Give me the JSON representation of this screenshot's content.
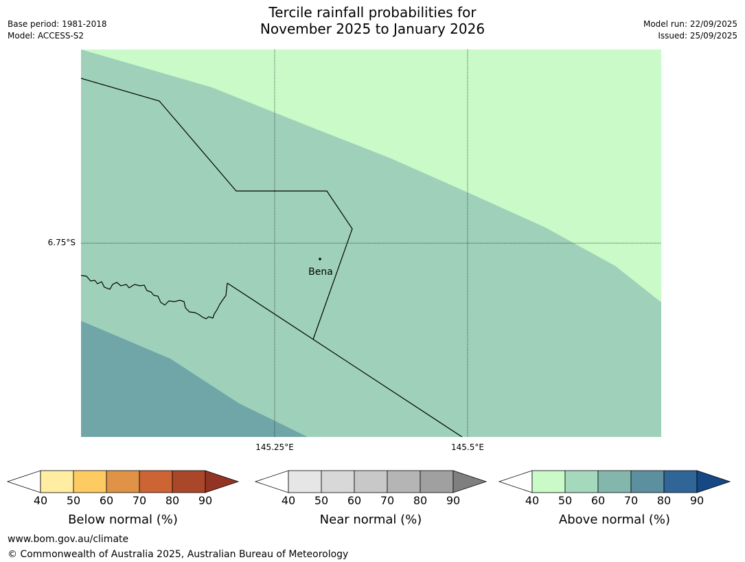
{
  "title": {
    "line1": "Tercile rainfall probabilities for",
    "line2": "November 2025 to January 2026"
  },
  "meta": {
    "base_period": "Base period: 1981-2018",
    "model": "Model: ACCESS-S2",
    "model_run": "Model run: 22/09/2025",
    "issued": "Issued: 25/09/2025"
  },
  "map": {
    "place_label": "Bena",
    "lon_labels": [
      "145.25°E",
      "145.5°E"
    ],
    "lat_label": "6.75°S",
    "zone_colors": {
      "above_40_50": "#c9fac8",
      "above_50_60": "#9fd1ba",
      "above_60_70": "#71a6a9"
    }
  },
  "legends": [
    {
      "name": "below",
      "label": "Below normal (%)",
      "ticks": [
        "40",
        "50",
        "60",
        "70",
        "80",
        "90"
      ],
      "colors": [
        "#ffeea1",
        "#fecb62",
        "#e09346",
        "#cd6433",
        "#ab4729"
      ],
      "extend_high": "#933323",
      "extend_low": "#ffffff"
    },
    {
      "name": "near",
      "label": "Near normal (%)",
      "ticks": [
        "40",
        "50",
        "60",
        "70",
        "80",
        "90"
      ],
      "colors": [
        "#e6e6e6",
        "#d8d8d8",
        "#c8c8c8",
        "#b5b5b5",
        "#a0a0a0"
      ],
      "extend_high": "#7f7f7f",
      "extend_low": "#ffffff"
    },
    {
      "name": "above",
      "label": "Above normal (%)",
      "ticks": [
        "40",
        "50",
        "60",
        "70",
        "80",
        "90"
      ],
      "colors": [
        "#c9fac8",
        "#a5d9bd",
        "#83b7ac",
        "#5c909f",
        "#2f6597"
      ],
      "extend_high": "#164883",
      "extend_low": "#ffffff"
    }
  ],
  "footer": {
    "url": "www.bom.gov.au/climate",
    "copyright": "© Commonwealth of Australia 2025, Australian Bureau of Meteorology"
  }
}
